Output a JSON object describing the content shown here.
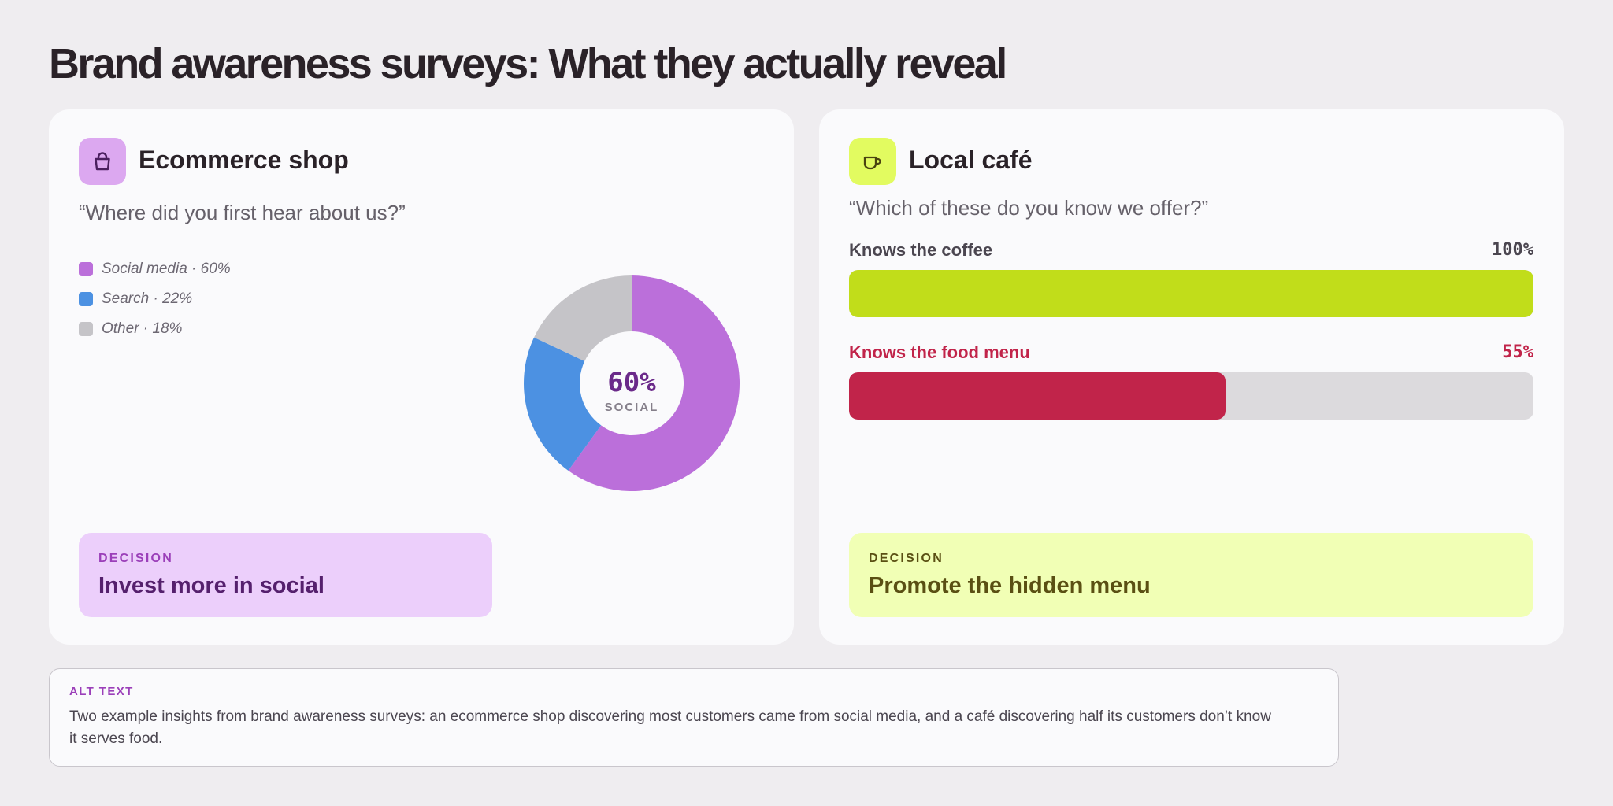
{
  "page": {
    "title": "Brand awareness surveys: What they actually reveal"
  },
  "colors": {
    "background": "#efedf0",
    "card": "#fafafc",
    "social": "#bb6fda",
    "search": "#4c91e2",
    "other": "#c5c4c8",
    "coffee_bar": "#c1dd1a",
    "food_bar": "#c1244a",
    "track": "#dcdadd"
  },
  "ecommerce": {
    "icon": "shopping-bag-icon",
    "title": "Ecommerce shop",
    "question": "“Where did you first hear about us?”",
    "legend": [
      {
        "label": "Social media · 60%",
        "color": "#bb6fda"
      },
      {
        "label": "Search · 22%",
        "color": "#4c91e2"
      },
      {
        "label": "Other · 18%",
        "color": "#c5c4c8"
      }
    ],
    "center_value": "60%",
    "center_label": "SOCIAL",
    "decision_label": "DECISION",
    "decision_text": "Invest more in social"
  },
  "cafe": {
    "icon": "coffee-cup-icon",
    "title": "Local café",
    "question": "“Which of these do you know we offer?”",
    "bars": [
      {
        "label": "Knows the coffee",
        "pct_text": "100%",
        "value": 100,
        "color": "#c1dd1a",
        "label_color": "#4b4650"
      },
      {
        "label": "Knows the food menu",
        "pct_text": "55%",
        "value": 55,
        "color": "#c1244a",
        "label_color": "#c1244a"
      }
    ],
    "decision_label": "DECISION",
    "decision_text": "Promote the hidden menu"
  },
  "alt": {
    "label": "ALT TEXT",
    "text": "Two example insights from brand awareness surveys: an ecommerce shop discovering most customers came from social media, and a café discovering half its customers don’t know it serves food."
  },
  "chart_data": [
    {
      "type": "pie",
      "subtype": "donut",
      "title": "Ecommerce shop",
      "categories": [
        "Social media",
        "Search",
        "Other"
      ],
      "values": [
        60,
        22,
        18
      ],
      "unit": "%",
      "colors": [
        "#bb6fda",
        "#4c91e2",
        "#c5c4c8"
      ],
      "center_text": "60% SOCIAL",
      "legend": "top-left"
    },
    {
      "type": "bar",
      "orientation": "horizontal",
      "title": "Local café",
      "categories": [
        "Knows the coffee",
        "Knows the food menu"
      ],
      "values": [
        100,
        55
      ],
      "unit": "%",
      "xlim": [
        0,
        100
      ],
      "colors": [
        "#c1dd1a",
        "#c1244a"
      ],
      "grid": false
    }
  ]
}
